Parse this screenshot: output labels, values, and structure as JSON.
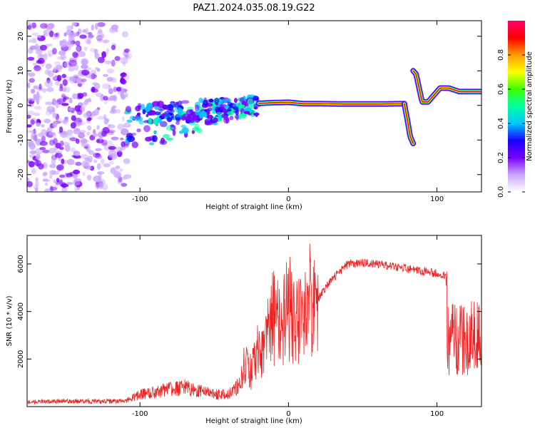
{
  "title": "PAZ1.2024.035.08.19.G22",
  "chart_data": [
    {
      "type": "heatmap",
      "xlabel": "Height of straight line (km)",
      "ylabel": "Frequency (Hz)",
      "xlim": [
        -176,
        130
      ],
      "ylim": [
        -25,
        24.5
      ],
      "xticks": [
        -100,
        0,
        100
      ],
      "yticks": [
        -20,
        -10,
        0,
        10,
        20
      ],
      "colorbar": {
        "label": "Normalized spectral amplitude",
        "ticks": [
          "0.0",
          "0.2",
          "0.4",
          "0.6",
          "0.8"
        ],
        "range": [
          0,
          1
        ],
        "colors": [
          "#ffffff",
          "#c9a6ff",
          "#7a00ff",
          "#1a00ff",
          "#00c8ff",
          "#00ffa0",
          "#3cff00",
          "#ffff00",
          "#ff9a00",
          "#ff0000",
          "#ff0070"
        ]
      },
      "features": [
        {
          "name": "noise",
          "x_range": [
            -176,
            -108
          ],
          "freq_range": [
            -25,
            24
          ]
        },
        {
          "name": "scatter",
          "x_range": [
            -108,
            -20
          ],
          "freq_range": [
            -15,
            6
          ]
        },
        {
          "name": "line",
          "x": [
            -20,
            -10,
            0,
            10,
            20,
            40,
            60,
            78
          ],
          "freq": [
            0.6,
            0.8,
            0.9,
            0.5,
            0.5,
            0.4,
            0.4,
            0.5
          ]
        },
        {
          "name": "drop",
          "x": [
            78,
            80,
            82,
            84
          ],
          "freq": [
            0.5,
            -4,
            -9,
            -11
          ]
        },
        {
          "name": "rise",
          "x": [
            84,
            86,
            88,
            90,
            94,
            98,
            102,
            108,
            115,
            130
          ],
          "freq": [
            10,
            9,
            5,
            1,
            1,
            3,
            5,
            5,
            4,
            4
          ]
        }
      ]
    },
    {
      "type": "line",
      "xlabel": "Height of straight line (km)",
      "ylabel": "SNR (10 * v/v)",
      "xlim": [
        -176,
        130
      ],
      "ylim": [
        0,
        7200
      ],
      "xticks": [
        -100,
        0,
        100
      ],
      "yticks": [
        2000,
        4000,
        6000
      ],
      "color": "#ee2222",
      "series": [
        {
          "x": [
            -176,
            -150,
            -130,
            -110,
            -100,
            -90,
            -80,
            -70,
            -60,
            -50,
            -40,
            -33,
            -30,
            -25,
            -20,
            -15,
            -10,
            -5,
            0,
            5,
            10,
            15,
            20,
            25,
            30,
            40,
            50,
            60,
            70,
            80,
            90,
            100,
            106,
            107,
            115,
            130
          ],
          "y": [
            200,
            230,
            220,
            230,
            500,
            600,
            750,
            800,
            650,
            500,
            520,
            900,
            2000,
            1500,
            2600,
            2800,
            3800,
            3200,
            4200,
            3600,
            3900,
            4500,
            4500,
            5000,
            5400,
            6000,
            6050,
            6000,
            5900,
            5800,
            5700,
            5600,
            5500,
            2850,
            2880,
            2850
          ]
        }
      ]
    }
  ]
}
